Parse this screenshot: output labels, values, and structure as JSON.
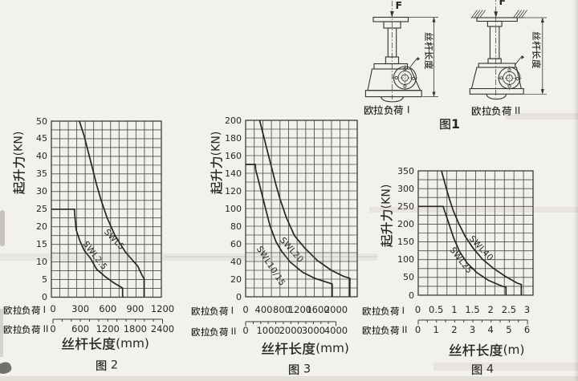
{
  "page": {
    "background": "#f3f1ec",
    "ink": "#262626",
    "grid_color": "#4c4c4a",
    "curve_color": "#262624"
  },
  "figure1": {
    "caption": "图1",
    "force_label": "F",
    "dimension_label": "丝杆长度",
    "drawings": [
      {
        "caption": "欧拉负荷 I"
      },
      {
        "caption": "欧拉负荷 II"
      }
    ]
  },
  "chart_data": [
    {
      "type": "line",
      "figure_caption": "图 2",
      "ylabel": "起升力(KN)",
      "xlabel": "丝杆长度(mm)",
      "ylim": [
        0,
        50
      ],
      "yticks": [
        0,
        5,
        10,
        15,
        20,
        25,
        30,
        35,
        40,
        45,
        50
      ],
      "scale_I": {
        "label": "欧拉负荷 I",
        "ticks": [
          0,
          300,
          600,
          900,
          1200
        ],
        "max": 1200
      },
      "scale_II": {
        "label": "欧拉负荷 II",
        "ticks": [
          0,
          600,
          1200,
          1800,
          2400
        ],
        "max": 2400
      },
      "grid": {
        "cols": 13,
        "rows": 20
      },
      "series": [
        {
          "name": "SWL2.5",
          "points": [
            [
              0,
              25
            ],
            [
              236,
              25
            ],
            [
              238,
              23.5
            ],
            [
              242,
              22.4
            ],
            [
              254,
              19.1
            ],
            [
              299,
              15.7
            ],
            [
              345,
              13.2
            ],
            [
              410,
              11.1
            ],
            [
              479,
              7.9
            ],
            [
              569,
              5.9
            ],
            [
              659,
              4.2
            ],
            [
              762,
              2.6
            ]
          ],
          "drop_x": 762
        },
        {
          "name": "SWL5",
          "points": [
            [
              289,
              50
            ],
            [
              344,
              45.6
            ],
            [
              389,
              41.0
            ],
            [
              434,
              36.4
            ],
            [
              479,
              31.8
            ],
            [
              524,
              27.8
            ],
            [
              592,
              22.6
            ],
            [
              681,
              17.4
            ],
            [
              794,
              12.8
            ],
            [
              929,
              8.8
            ],
            [
              968,
              6.6
            ],
            [
              998,
              5.2
            ]
          ],
          "drop_x": 998
        }
      ]
    },
    {
      "type": "line",
      "figure_caption": "图 3",
      "ylabel": "起升力(KN)",
      "xlabel": "丝杆长度(mm)",
      "ylim": [
        0,
        200
      ],
      "yticks": [
        0,
        20,
        40,
        60,
        80,
        100,
        120,
        140,
        160,
        180,
        200
      ],
      "scale_I": {
        "label": "欧拉负荷 I",
        "ticks": [
          0,
          400,
          800,
          1200,
          1600,
          2000
        ],
        "max": 2000
      },
      "scale_II": {
        "label": "欧拉负荷 II",
        "ticks": [
          0,
          1000,
          2000,
          3000,
          4000
        ],
        "max": 4000
      },
      "grid": {
        "cols": 13,
        "rows": 20
      },
      "series": [
        {
          "name": "SWL10/15",
          "points": [
            [
              0,
              150
            ],
            [
              216,
              150
            ],
            [
              222,
              144
            ],
            [
              264,
              135.6
            ],
            [
              356,
              117.3
            ],
            [
              446,
              98.9
            ],
            [
              538,
              80.5
            ],
            [
              673,
              62.2
            ],
            [
              809,
              50.7
            ],
            [
              991,
              39.2
            ],
            [
              1264,
              27.7
            ],
            [
              1536,
              20.8
            ],
            [
              1809,
              16.3
            ],
            [
              1917,
              14.5
            ]
          ],
          "drop_x": 1917
        },
        {
          "name": "SWL20",
          "points": [
            [
              309,
              200
            ],
            [
              401,
              181.5
            ],
            [
              491,
              163.2
            ],
            [
              583,
              144.8
            ],
            [
              673,
              126.5
            ],
            [
              765,
              110.4
            ],
            [
              901,
              89.7
            ],
            [
              1083,
              69.1
            ],
            [
              1309,
              55.3
            ],
            [
              1581,
              41.5
            ],
            [
              1899,
              30
            ],
            [
              2173,
              23.1
            ],
            [
              2308,
              21
            ]
          ],
          "drop_x": 2308
        }
      ]
    },
    {
      "type": "line",
      "figure_caption": "图 4",
      "ylabel": "起升力(KN)",
      "xlabel": "丝杆长度(m)",
      "ylim": [
        0,
        350
      ],
      "yticks": [
        0,
        50,
        100,
        150,
        200,
        250,
        300,
        350
      ],
      "scale_I": {
        "label": "欧拉负荷 I",
        "ticks": [
          0,
          0.5,
          1,
          1.5,
          2,
          2.5,
          3
        ],
        "max": 3
      },
      "scale_II": {
        "label": "欧拉负荷 II",
        "ticks": [
          0,
          1,
          2,
          3,
          4,
          5,
          6
        ],
        "max": 6
      },
      "grid": {
        "cols": 12,
        "rows": 14
      },
      "series": [
        {
          "name": "SWL25",
          "points": [
            [
              0,
              250
            ],
            [
              0.683,
              250
            ],
            [
              0.72,
              238
            ],
            [
              0.758,
              227
            ],
            [
              0.864,
              194.5
            ],
            [
              0.97,
              161.8
            ],
            [
              1.13,
              123.5
            ],
            [
              1.34,
              90.7
            ],
            [
              1.61,
              63.4
            ],
            [
              1.93,
              41.5
            ],
            [
              2.31,
              25.1
            ],
            [
              2.41,
              23
            ]
          ],
          "drop_x": 2.41
        },
        {
          "name": "SWL40",
          "points": [
            [
              0.64,
              350
            ],
            [
              0.747,
              309
            ],
            [
              0.855,
              271
            ],
            [
              0.96,
              238
            ],
            [
              1.12,
              200
            ],
            [
              1.28,
              167
            ],
            [
              1.49,
              134.5
            ],
            [
              1.76,
              101.6
            ],
            [
              2.08,
              74.3
            ],
            [
              2.4,
              52.4
            ],
            [
              2.72,
              33.9
            ],
            [
              2.83,
              30
            ]
          ],
          "drop_x": 2.83
        }
      ]
    }
  ]
}
